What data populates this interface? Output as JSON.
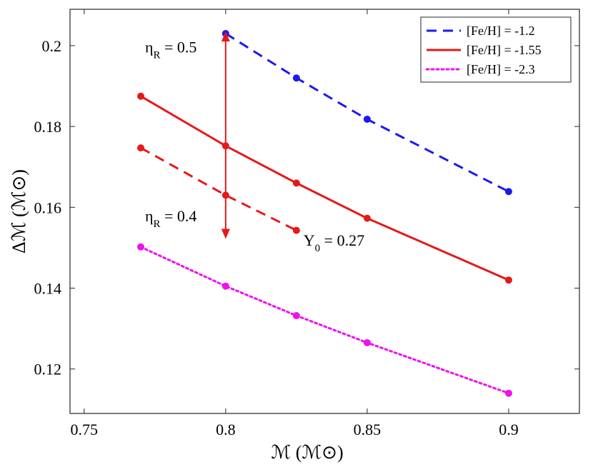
{
  "chart_data": {
    "type": "line",
    "title": "",
    "xlabel": "ℳ (ℳ⊙)",
    "ylabel": "Δℳ (ℳ⊙)",
    "xlim": [
      0.745,
      0.925
    ],
    "ylim": [
      0.109,
      0.209
    ],
    "xticks": [
      0.75,
      0.8,
      0.85,
      0.9
    ],
    "xtick_labels": [
      "0.75",
      "0.8",
      "0.85",
      "0.9"
    ],
    "yticks": [
      0.12,
      0.14,
      0.16,
      0.18,
      0.2
    ],
    "ytick_labels": [
      "0.12",
      "0.14",
      "0.16",
      "0.18",
      "0.2"
    ],
    "grid": false,
    "legend_position": "top-right",
    "series": [
      {
        "name": "[Fe/H] = -1.2",
        "color": "#1a1aee",
        "style": "dashed",
        "x": [
          0.8,
          0.825,
          0.85,
          0.9
        ],
        "y": [
          0.203,
          0.192,
          0.1818,
          0.1639
        ]
      },
      {
        "name": "[Fe/H] = -1.55",
        "color": "#e61919",
        "style": "solid",
        "x": [
          0.77,
          0.8,
          0.825,
          0.85,
          0.9
        ],
        "y": [
          0.1875,
          0.1752,
          0.166,
          0.1573,
          0.142
        ]
      },
      {
        "name": "[Fe/H] = -2.3",
        "color": "#ee11ee",
        "style": "dotted",
        "x": [
          0.77,
          0.8,
          0.825,
          0.85,
          0.9
        ],
        "y": [
          0.1502,
          0.1405,
          0.1332,
          0.1265,
          0.114
        ]
      },
      {
        "name": "Y0 = 0.27",
        "color": "#e61919",
        "style": "dashed",
        "in_legend": false,
        "x": [
          0.77,
          0.8,
          0.825
        ],
        "y": [
          0.1747,
          0.163,
          0.1543
        ]
      }
    ],
    "arrow": {
      "color": "#e61919",
      "x": 0.8,
      "y_top": 0.2035,
      "y_bottom": 0.1522
    },
    "annotations": [
      {
        "id": "eta-top",
        "prefix": "η",
        "sub": "R",
        "suffix": " = 0.5",
        "x": 0.7715,
        "y": 0.1983
      },
      {
        "id": "eta-bottom",
        "prefix": "η",
        "sub": "R",
        "suffix": " = 0.4",
        "x": 0.7715,
        "y": 0.1565
      },
      {
        "id": "y0-label",
        "prefix": "Y",
        "sub": "0",
        "suffix": " = 0.27",
        "x": 0.8275,
        "y": 0.1505
      }
    ]
  }
}
